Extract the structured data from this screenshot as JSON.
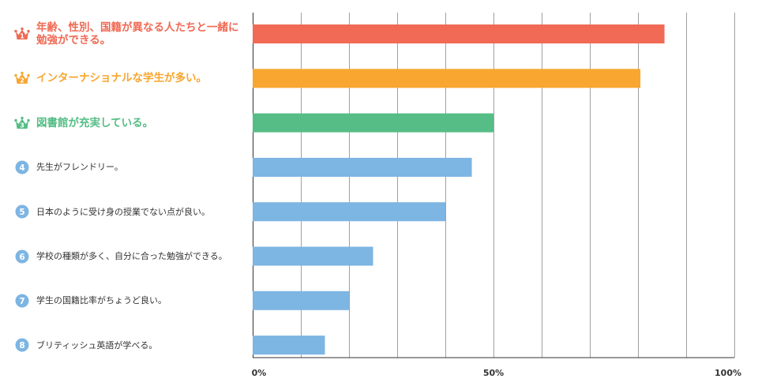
{
  "chart_data": {
    "type": "bar",
    "orientation": "horizontal",
    "categories": [
      "年齢、性別、国籍が異なる人たちと一緒に勉強ができる。",
      "インターナショナルな学生が多い。",
      "図書館が充実している。",
      "先生がフレンドリー。",
      "日本のように受け身の授業でない点が良い。",
      "学校の種類が多く、自分に合った勉強ができる。",
      "学生の国籍比率がちょうど良い。",
      "ブリティッシュ英語が学べる。"
    ],
    "ranks": [
      "1",
      "2",
      "3",
      "4",
      "5",
      "6",
      "7",
      "8"
    ],
    "values": [
      85.5,
      80.5,
      50.0,
      45.5,
      40.0,
      25.0,
      20.0,
      15.0
    ],
    "xlim": [
      0,
      100
    ],
    "x_tick_labels": [
      {
        "value": 0,
        "label": "0%"
      },
      {
        "value": 50,
        "label": "50%"
      },
      {
        "value": 100,
        "label": "100%"
      }
    ],
    "grid": true,
    "grid_step": 10,
    "colors": [
      "#f06a55",
      "#f8a630",
      "#55bd85",
      "#7db5e3",
      "#7db5e3",
      "#7db5e3",
      "#7db5e3",
      "#7db5e3"
    ],
    "legend": "none"
  }
}
